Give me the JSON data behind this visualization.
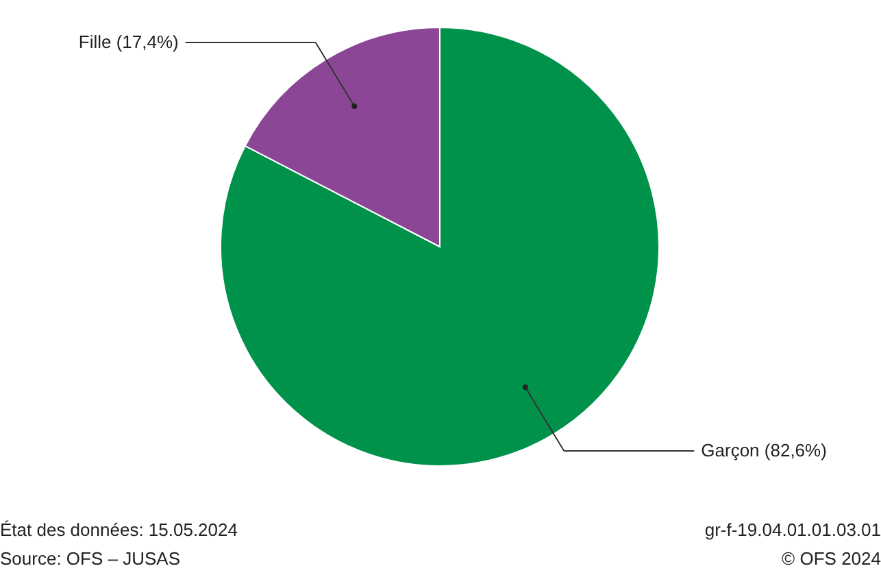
{
  "chart_data": {
    "type": "pie",
    "categories": [
      "Garçon",
      "Fille"
    ],
    "values": [
      82.6,
      17.4
    ],
    "colors": [
      "#00924a",
      "#8b4796"
    ],
    "value_labels": [
      "(82,6%)",
      "(17,4%)"
    ],
    "legend": false,
    "annotations": [
      "État des données: 15.05.2024",
      "Source: OFS – JUSAS",
      "gr-f-19.04.01.01.03.01",
      "© OFS 2024"
    ]
  }
}
